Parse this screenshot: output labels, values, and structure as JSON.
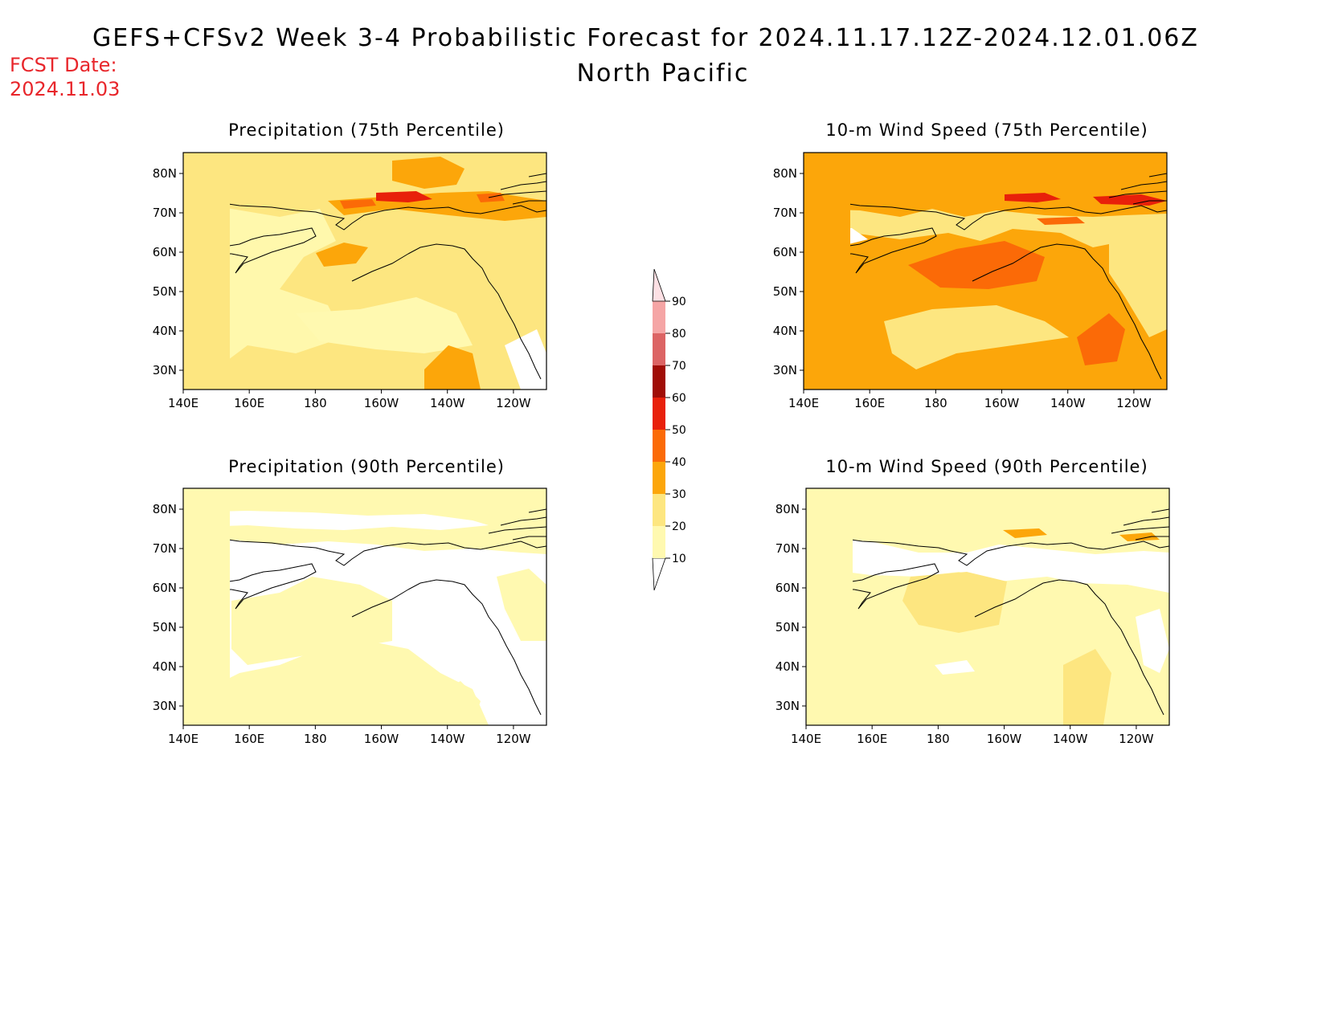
{
  "header": {
    "title": "GEFS+CFSv2 Week 3-4 Probabilistic Forecast for 2024.11.17.12Z-2024.12.01.06Z",
    "region": "North Pacific",
    "fcst_label": "FCST Date:",
    "fcst_date": "2024.11.03"
  },
  "axes": {
    "lon_ticks": [
      "140E",
      "160E",
      "180",
      "160W",
      "140W",
      "120W"
    ],
    "lat_ticks": [
      "80N",
      "70N",
      "60N",
      "50N",
      "40N",
      "30N"
    ]
  },
  "colorbar": {
    "levels": [
      "10",
      "20",
      "30",
      "40",
      "50",
      "60",
      "70",
      "80",
      "90"
    ],
    "colors": [
      "#fff9b0",
      "#fde680",
      "#fca60a",
      "#fb6a07",
      "#e8200a",
      "#a00d06",
      "#dc6464",
      "#f5a5a5",
      "#fde0e4"
    ]
  },
  "panels": [
    {
      "id": "precip75",
      "title": "Precipitation (75th Percentile)",
      "dominant_level": "20-30"
    },
    {
      "id": "wind75",
      "title": "10-m Wind Speed (75th Percentile)",
      "dominant_level": "30-40"
    },
    {
      "id": "precip90",
      "title": "Precipitation (90th Percentile)",
      "dominant_level": "10-20"
    },
    {
      "id": "wind90",
      "title": "10-m Wind Speed (90th Percentile)",
      "dominant_level": "10-20"
    }
  ]
}
